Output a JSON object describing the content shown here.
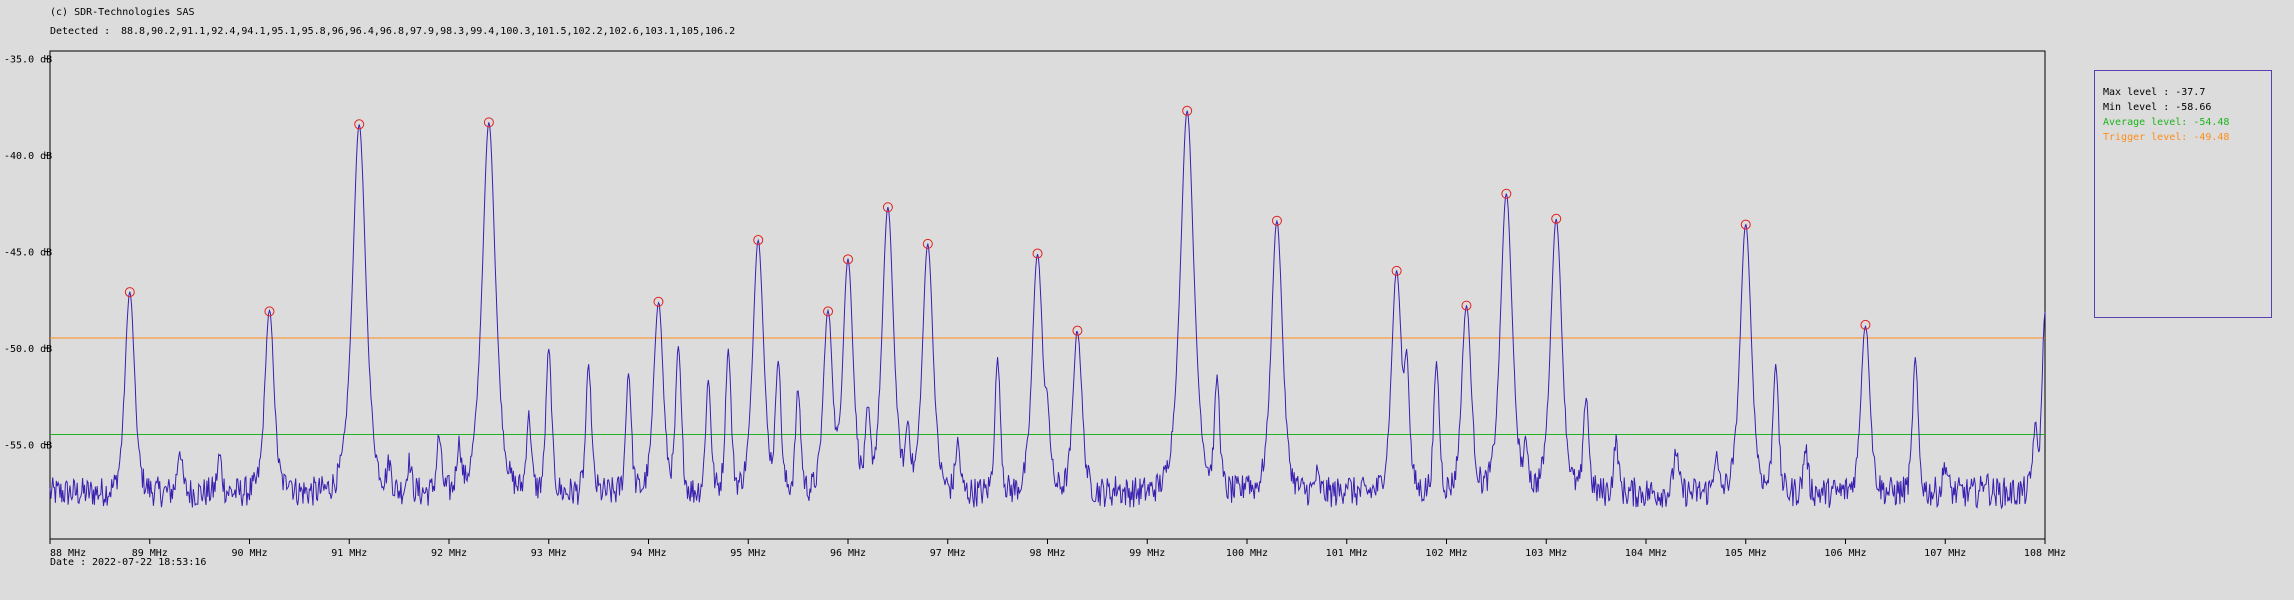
{
  "header": {
    "copyright": "(c) SDR-Technologies SAS",
    "detected_label": "Detected :",
    "detected_list": "88.8,90.2,91.1,92.4,94.1,95.1,95.8,96,96.4,96.8,97.9,98.3,99.4,100.3,101.5,102.2,102.6,103.1,105,106.2"
  },
  "footer": {
    "date_label": "Date : ",
    "date_value": "2022-07-22 18:53:16"
  },
  "stats": {
    "max_label": "Max level : ",
    "max_value": "-37.7",
    "min_label": "Min level : ",
    "min_value": "-58.66",
    "avg_label": "Average level: ",
    "avg_value": "-54.48",
    "trigger_label": "Trigger level: ",
    "trigger_value": "-49.48"
  },
  "colors": {
    "trace": "#3a1fb0",
    "peak_marker": "#e02020",
    "average": "#1db31d",
    "trigger": "#ff8c1a",
    "frame": "#000000"
  },
  "chart_data": {
    "type": "line",
    "x_unit": "MHz",
    "y_unit": "dB",
    "xlim": [
      88,
      108
    ],
    "ylim": [
      -59.9,
      -34.6
    ],
    "x_ticks": [
      88,
      89,
      90,
      91,
      92,
      93,
      94,
      95,
      96,
      97,
      98,
      99,
      100,
      101,
      102,
      103,
      104,
      105,
      106,
      107,
      108
    ],
    "x_tick_labels": [
      "88 MHz",
      "89 MHz",
      "90 MHz",
      "91 MHz",
      "92 MHz",
      "93 MHz",
      "94 MHz",
      "95 MHz",
      "96 MHz",
      "97 MHz",
      "98 MHz",
      "99 MHz",
      "100 MHz",
      "101 MHz",
      "102 MHz",
      "103 MHz",
      "104 MHz",
      "105 MHz",
      "106 MHz",
      "107 MHz",
      "108 MHz"
    ],
    "y_ticks": [
      -35,
      -40,
      -45,
      -50,
      -55
    ],
    "y_tick_labels": [
      "-35.0 dB",
      "-40.0 dB",
      "-45.0 dB",
      "-50.0 dB",
      "-55.0 dB"
    ],
    "average_level": -54.48,
    "trigger_level": -49.48,
    "peaks": [
      {
        "f": 88.8,
        "db": -47.1
      },
      {
        "f": 90.2,
        "db": -48.1
      },
      {
        "f": 91.1,
        "db": -38.4
      },
      {
        "f": 92.4,
        "db": -38.3
      },
      {
        "f": 94.1,
        "db": -47.6
      },
      {
        "f": 95.1,
        "db": -44.4
      },
      {
        "f": 95.8,
        "db": -48.1
      },
      {
        "f": 96.0,
        "db": -45.4
      },
      {
        "f": 96.4,
        "db": -42.7
      },
      {
        "f": 96.8,
        "db": -44.6
      },
      {
        "f": 97.9,
        "db": -45.1
      },
      {
        "f": 98.3,
        "db": -49.1
      },
      {
        "f": 99.4,
        "db": -37.7
      },
      {
        "f": 100.3,
        "db": -43.4
      },
      {
        "f": 101.5,
        "db": -46.0
      },
      {
        "f": 102.2,
        "db": -47.8
      },
      {
        "f": 102.6,
        "db": -42.0
      },
      {
        "f": 103.1,
        "db": -43.3
      },
      {
        "f": 105.0,
        "db": -43.6
      },
      {
        "f": 106.2,
        "db": -48.8
      }
    ],
    "secondary_peaks": [
      {
        "f": 89.3,
        "db": -55.2
      },
      {
        "f": 89.7,
        "db": -55.6
      },
      {
        "f": 90.4,
        "db": -56.7
      },
      {
        "f": 91.4,
        "db": -56.1
      },
      {
        "f": 91.6,
        "db": -55.9
      },
      {
        "f": 91.9,
        "db": -54.6
      },
      {
        "f": 92.1,
        "db": -55.0
      },
      {
        "f": 92.8,
        "db": -53.5
      },
      {
        "f": 93.0,
        "db": -50.1
      },
      {
        "f": 93.4,
        "db": -51.0
      },
      {
        "f": 93.8,
        "db": -51.3
      },
      {
        "f": 94.3,
        "db": -50.0
      },
      {
        "f": 94.6,
        "db": -51.7
      },
      {
        "f": 94.8,
        "db": -50.1
      },
      {
        "f": 95.3,
        "db": -50.6
      },
      {
        "f": 95.5,
        "db": -52.2
      },
      {
        "f": 96.2,
        "db": -53.4
      },
      {
        "f": 96.6,
        "db": -54.1
      },
      {
        "f": 97.1,
        "db": -54.9
      },
      {
        "f": 97.5,
        "db": -50.6
      },
      {
        "f": 98.0,
        "db": -53.6
      },
      {
        "f": 98.7,
        "db": -57.2
      },
      {
        "f": 99.7,
        "db": -51.6
      },
      {
        "f": 100.0,
        "db": -56.7
      },
      {
        "f": 100.7,
        "db": -56.6
      },
      {
        "f": 101.0,
        "db": -56.9
      },
      {
        "f": 101.6,
        "db": -50.6
      },
      {
        "f": 101.9,
        "db": -50.8
      },
      {
        "f": 102.8,
        "db": -55.2
      },
      {
        "f": 103.4,
        "db": -52.5
      },
      {
        "f": 103.7,
        "db": -54.8
      },
      {
        "f": 104.3,
        "db": -55.3
      },
      {
        "f": 104.7,
        "db": -55.6
      },
      {
        "f": 105.3,
        "db": -50.8
      },
      {
        "f": 105.6,
        "db": -55.2
      },
      {
        "f": 106.7,
        "db": -50.6
      },
      {
        "f": 107.0,
        "db": -56.0
      },
      {
        "f": 107.4,
        "db": -56.7
      },
      {
        "f": 107.9,
        "db": -54.2
      },
      {
        "f": 108.0,
        "db": -48.2
      }
    ],
    "noise_floor": -57.5
  }
}
